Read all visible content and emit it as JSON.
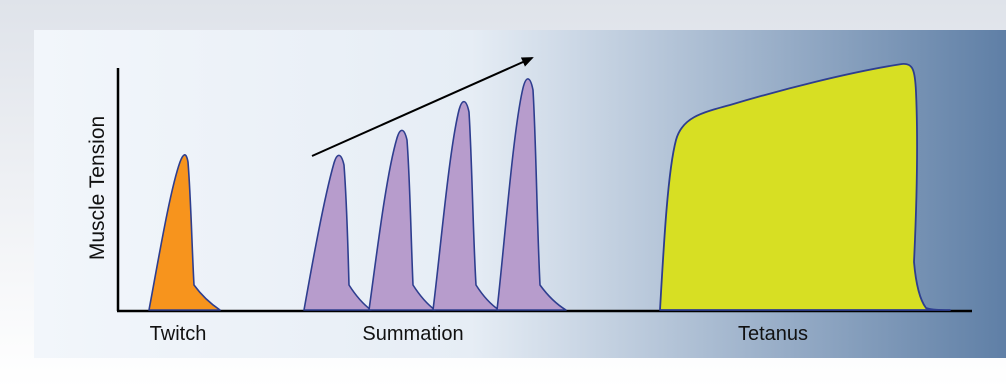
{
  "diagram": {
    "y_axis_label": "Muscle Tension",
    "sections": [
      {
        "key": "twitch",
        "label": "Twitch"
      },
      {
        "key": "summation",
        "label": "Summation"
      },
      {
        "key": "tetanus",
        "label": "Tetanus"
      }
    ]
  },
  "colors": {
    "twitch_fill": "#f7941d",
    "summation_fill": "#b79ccc",
    "tetanus_fill": "#d7df23",
    "outline": "#2e3e8f",
    "axis": "#000000",
    "panel_left": "#f2f6fb",
    "panel_right": "#5f7fa6",
    "frame": "#e2e6ee",
    "frame_bottom": "#ffffff"
  }
}
